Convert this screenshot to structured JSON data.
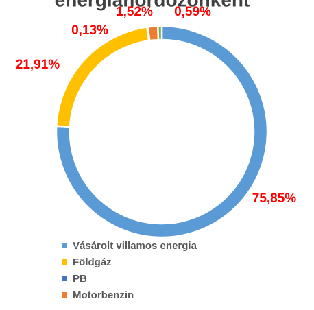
{
  "chart_data": {
    "type": "pie",
    "title": "energiahordozónként",
    "categories": [
      "Vásárolt villamos energia",
      "Földgáz",
      "PB",
      "Motorbenzin",
      null
    ],
    "values": [
      75.85,
      21.91,
      0.13,
      1.52,
      0.59
    ],
    "value_labels": [
      "75,85%",
      "21,91%",
      "0,13%",
      "1,52%",
      "0,59%"
    ],
    "colors": [
      "#5b9bd5",
      "#ffc000",
      "#4472c4",
      "#ed7d31",
      "#70ad47"
    ]
  }
}
